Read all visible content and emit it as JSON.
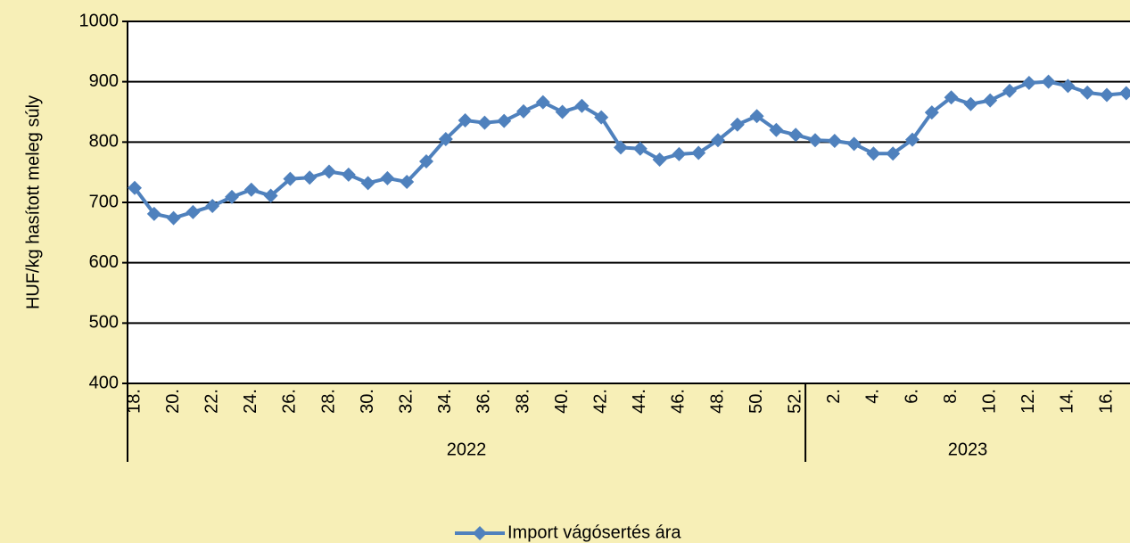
{
  "chart_data": {
    "type": "line",
    "y_label": "HUF/kg hasított meleg súly",
    "categories": [
      "18.",
      null,
      "20.",
      null,
      "22.",
      null,
      "24.",
      null,
      "26.",
      null,
      "28.",
      null,
      "30.",
      null,
      "32.",
      null,
      "34.",
      null,
      "36.",
      null,
      "38.",
      null,
      "40.",
      null,
      "42.",
      null,
      "44.",
      null,
      "46.",
      null,
      "48.",
      null,
      "50.",
      null,
      "52.",
      null,
      "2.",
      null,
      "4.",
      null,
      "6.",
      null,
      "8.",
      null,
      "10.",
      null,
      "12.",
      null,
      "14.",
      null,
      "16.",
      null
    ],
    "x_groups": [
      {
        "label": "2022",
        "count": 35
      },
      {
        "label": "2023",
        "count": 17
      }
    ],
    "series": [
      {
        "name": "Import vágósertés ára",
        "color": "#4f81bd",
        "values": [
          724,
          681,
          674,
          684,
          694,
          709,
          721,
          711,
          739,
          741,
          751,
          746,
          732,
          740,
          734,
          768,
          805,
          836,
          832,
          835,
          851,
          866,
          850,
          860,
          841,
          791,
          789,
          771,
          780,
          782,
          803,
          829,
          843,
          820,
          812,
          803,
          802,
          797,
          781,
          781,
          804,
          849,
          874,
          863,
          869,
          885,
          898,
          900,
          893,
          882,
          878,
          881
        ]
      }
    ],
    "ylim": [
      400,
      1000
    ],
    "yticks": [
      400,
      500,
      600,
      700,
      800,
      900,
      1000
    ],
    "grid": true,
    "legend": "bottom"
  }
}
